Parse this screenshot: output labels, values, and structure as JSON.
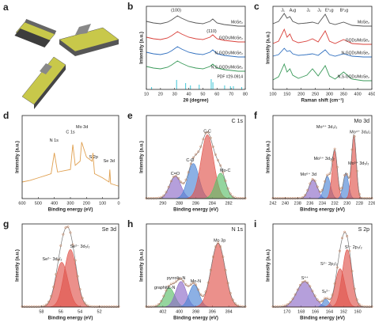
{
  "illustration": {
    "panel": "a"
  },
  "chart_data": [
    {
      "type": "line",
      "panel": "b",
      "xlabel": "2θ (degree)",
      "ylabel": "Intensity (a.u.)",
      "xlim": [
        10,
        80
      ],
      "xticks": [
        10,
        20,
        30,
        40,
        50,
        60,
        70,
        80
      ],
      "ylim": [
        0,
        10.5
      ],
      "x": [
        10,
        15,
        20,
        25,
        28,
        32,
        35,
        40,
        45,
        50,
        55,
        57,
        60,
        65,
        70,
        75,
        80
      ],
      "series": [
        {
          "name": "MoSe₂",
          "color": "#555555",
          "values": [
            8.6,
            8.4,
            8.3,
            8.5,
            8.8,
            9.3,
            9.0,
            8.6,
            8.4,
            8.3,
            8.6,
            8.9,
            8.4,
            8.2,
            8.1,
            8.0,
            8.0
          ]
        },
        {
          "name": "GQDs/MoSe₂",
          "color": "#d9403a",
          "values": [
            6.6,
            6.4,
            6.3,
            6.5,
            6.8,
            7.3,
            7.0,
            6.6,
            6.4,
            6.3,
            6.6,
            6.9,
            6.4,
            6.2,
            6.1,
            6.0,
            6.0
          ]
        },
        {
          "name": "N-GQDs/MoSe₂",
          "color": "#2f6fbf",
          "values": [
            4.7,
            4.5,
            4.4,
            4.6,
            4.9,
            5.4,
            5.1,
            4.7,
            4.5,
            4.4,
            4.7,
            5.0,
            4.5,
            4.3,
            4.2,
            4.1,
            4.1
          ]
        },
        {
          "name": "N,S-GQDs/MoSe₂",
          "color": "#3a9a5a",
          "values": [
            2.9,
            2.7,
            2.6,
            2.8,
            3.1,
            3.6,
            3.3,
            2.9,
            2.7,
            2.6,
            2.9,
            3.2,
            2.7,
            2.5,
            2.4,
            2.3,
            2.3
          ]
        }
      ],
      "reference": {
        "name": "PDF #29-0914",
        "color": "#3ec6d6",
        "x": [
          13.7,
          31.4,
          37.8,
          41.2,
          47.4,
          55.9,
          57.1,
          65.4,
          69.5,
          71.6,
          77.5
        ],
        "values": [
          0.3,
          1.2,
          0.8,
          0.5,
          0.6,
          1.3,
          0.9,
          0.5,
          0.4,
          0.4,
          0.3
        ]
      },
      "annotations": [
        "(100)",
        "(110)"
      ]
    },
    {
      "type": "line",
      "panel": "c",
      "xlabel": "Raman shift (cm⁻¹)",
      "ylabel": "Intensity (a.u.)",
      "xlim": [
        100,
        450
      ],
      "xticks": [
        100,
        150,
        200,
        250,
        300,
        350,
        400,
        450
      ],
      "ylim": [
        0,
        10.5
      ],
      "x": [
        100,
        120,
        140,
        150,
        160,
        170,
        190,
        220,
        240,
        260,
        285,
        300,
        320,
        350,
        380,
        420,
        450
      ],
      "series": [
        {
          "name": "MoSe₂",
          "color": "#555555",
          "values": [
            8.3,
            8.6,
            9.6,
            9.0,
            9.2,
            8.6,
            8.3,
            8.4,
            8.5,
            8.3,
            9.5,
            8.4,
            8.2,
            8.5,
            8.1,
            8.0,
            8.0
          ]
        },
        {
          "name": "GQDs/MoSe₂",
          "color": "#d9403a",
          "values": [
            5.8,
            6.1,
            7.6,
            6.6,
            7.0,
            6.2,
            5.9,
            6.1,
            6.4,
            6.0,
            7.4,
            6.1,
            5.8,
            6.3,
            5.8,
            5.7,
            5.7
          ]
        },
        {
          "name": "N-GQDs/MoSe₂",
          "color": "#2f6fbf",
          "values": [
            4.2,
            4.4,
            5.2,
            4.8,
            4.9,
            4.5,
            4.3,
            4.4,
            4.5,
            4.3,
            5.0,
            4.4,
            4.2,
            4.5,
            4.2,
            4.1,
            4.1
          ]
        },
        {
          "name": "N,S-GQDs/MoSe₂",
          "color": "#3a9a5a",
          "values": [
            1.2,
            1.6,
            3.2,
            2.2,
            2.6,
            1.8,
            1.4,
            1.8,
            2.6,
            1.7,
            3.0,
            1.7,
            1.3,
            2.2,
            1.3,
            1.1,
            1.1
          ]
        }
      ],
      "annotations": [
        "J₁",
        "A₁g",
        "J₂",
        "J₃",
        "E¹₂g",
        "B¹₂g"
      ]
    },
    {
      "type": "line",
      "panel": "d",
      "xlabel": "Binding energy (eV)",
      "ylabel": "Intensity (a.u.)",
      "xlim": [
        600,
        0
      ],
      "xticks": [
        600,
        500,
        400,
        300,
        200,
        100,
        0
      ],
      "ylim": [
        0,
        10
      ],
      "x": [
        600,
        550,
        500,
        450,
        420,
        400,
        380,
        300,
        285,
        270,
        240,
        230,
        200,
        165,
        160,
        150,
        100,
        60,
        55,
        50,
        0
      ],
      "series": [
        {
          "color": "#e0a050",
          "values": [
            2.0,
            2.2,
            2.5,
            2.8,
            3.0,
            5.5,
            3.2,
            3.5,
            6.5,
            4.0,
            4.5,
            6.8,
            5.0,
            4.5,
            5.5,
            3.0,
            2.5,
            2.0,
            3.5,
            1.8,
            1.5
          ]
        }
      ],
      "annotations": [
        "N 1s",
        "C 1s",
        "Mo 3d",
        "S 2p",
        "Se 3d"
      ]
    },
    {
      "type": "area",
      "panel": "e",
      "title": "C 1s",
      "xlabel": "Binding energy (eV)",
      "ylabel": "Intensity (a.u.)",
      "xlim": [
        292,
        280
      ],
      "xticks": [
        290,
        288,
        286,
        284,
        282
      ],
      "ylim": [
        0,
        1.3
      ],
      "series": [
        {
          "name": "C=O",
          "color": "#8e6bc8",
          "center": 288.5,
          "height": 0.35,
          "width": 1.6
        },
        {
          "name": "C-O",
          "color": "#4f86d6",
          "center": 286.3,
          "height": 0.55,
          "width": 1.6
        },
        {
          "name": "C-C",
          "color": "#e0554d",
          "center": 284.6,
          "height": 1.0,
          "width": 1.8
        },
        {
          "name": "Mo-C",
          "color": "#5cbf6a",
          "center": 283.0,
          "height": 0.4,
          "width": 1.5
        }
      ]
    },
    {
      "type": "area",
      "panel": "f",
      "title": "Mo 3d",
      "xlabel": "Binding energy (eV)",
      "ylabel": "Intensity (a.u.)",
      "xlim": [
        242,
        226
      ],
      "xticks": [
        242,
        240,
        238,
        236,
        234,
        232,
        230,
        228,
        226
      ],
      "ylim": [
        0,
        1.3
      ],
      "series": [
        {
          "name": "Mo⁶⁺ 3d",
          "color": "#8e6bc8",
          "center": 235.5,
          "height": 0.3,
          "width": 1.6
        },
        {
          "name": "Mo⁵⁺ 3d₃/₂",
          "color": "#4f86d6",
          "center": 233.2,
          "height": 0.35,
          "width": 1.2
        },
        {
          "name": "Mo⁴⁺ 3d₃/₂",
          "color": "#e0554d",
          "center": 232.0,
          "height": 0.75,
          "width": 1.0
        },
        {
          "name": "Mo⁵⁺ 3d₅/₂",
          "color": "#4f86d6",
          "center": 230.2,
          "height": 0.4,
          "width": 1.0
        },
        {
          "name": "Mo⁴⁺ 3d₅/₂",
          "color": "#e0554d",
          "center": 228.9,
          "height": 1.0,
          "width": 0.9
        }
      ]
    },
    {
      "type": "area",
      "panel": "g",
      "title": "Se 3d",
      "xlabel": "Binding energy (eV)",
      "ylabel": "Intensity (a.u.)",
      "xlim": [
        60,
        50
      ],
      "xticks": [
        58,
        56,
        54,
        52
      ],
      "ylim": [
        0,
        1.3
      ],
      "series": [
        {
          "name": "Se²⁻ 3d₃/₂",
          "color": "#e0554d",
          "center": 55.9,
          "height": 0.7,
          "width": 1.5
        },
        {
          "name": "Se²⁻ 3d₅/₂",
          "color": "#e0554d",
          "center": 55.0,
          "height": 0.9,
          "width": 1.5
        }
      ]
    },
    {
      "type": "area",
      "panel": "h",
      "title": "N 1s",
      "xlabel": "Binding energy (eV)",
      "ylabel": "Intensity (a.u.)",
      "xlim": [
        404,
        392
      ],
      "xticks": [
        402,
        400,
        398,
        396,
        394
      ],
      "ylim": [
        0,
        1.3
      ],
      "series": [
        {
          "name": "graphitic-N",
          "color": "#5cbf6a",
          "center": 401.2,
          "height": 0.3,
          "width": 1.5
        },
        {
          "name": "pyrrolic-N",
          "color": "#8e6bc8",
          "center": 399.8,
          "height": 0.4,
          "width": 1.5
        },
        {
          "name": "Mo-N",
          "color": "#4f86d6",
          "center": 398.2,
          "height": 0.35,
          "width": 1.4
        },
        {
          "name": "Mo 3p",
          "color": "#e0554d",
          "center": 395.3,
          "height": 1.0,
          "width": 2.0
        }
      ]
    },
    {
      "type": "area",
      "panel": "i",
      "title": "S 2p",
      "xlabel": "Binding energy (eV)",
      "ylabel": "Intensity (a.u.)",
      "xlim": [
        172,
        158
      ],
      "xticks": [
        170,
        168,
        166,
        164,
        162,
        160
      ],
      "ylim": [
        0,
        1.3
      ],
      "series": [
        {
          "name": "S⁴⁺",
          "color": "#8e6bc8",
          "center": 167.5,
          "height": 0.4,
          "width": 2.6
        },
        {
          "name": "Sₓ²⁻",
          "color": "#4f86d6",
          "center": 164.5,
          "height": 0.12,
          "width": 1.0
        },
        {
          "name": "S²⁻ 2p₁/₂",
          "color": "#e0554d",
          "center": 162.5,
          "height": 0.6,
          "width": 1.6
        },
        {
          "name": "S²⁻ 2p₃/₂",
          "color": "#e0554d",
          "center": 161.5,
          "height": 0.9,
          "width": 1.6
        }
      ]
    }
  ]
}
